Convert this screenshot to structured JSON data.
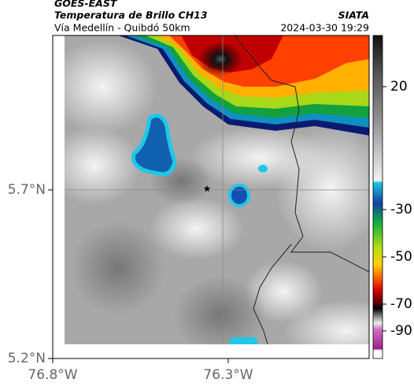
{
  "header": {
    "product": "GOES-EAST",
    "title": "Temperatura de Brillo CH13",
    "subtitle": "Vía Medellín - Quibdó 50km",
    "source": "SIATA",
    "timestamp": "2024-03-30 19:29"
  },
  "map": {
    "lat_labels": [
      "5.7°N",
      "5.2°N"
    ],
    "lon_labels": [
      "76.8°W",
      "76.3°W"
    ]
  },
  "colorbar": {
    "ticks": [
      20,
      -30,
      -50,
      -70,
      -90
    ]
  }
}
